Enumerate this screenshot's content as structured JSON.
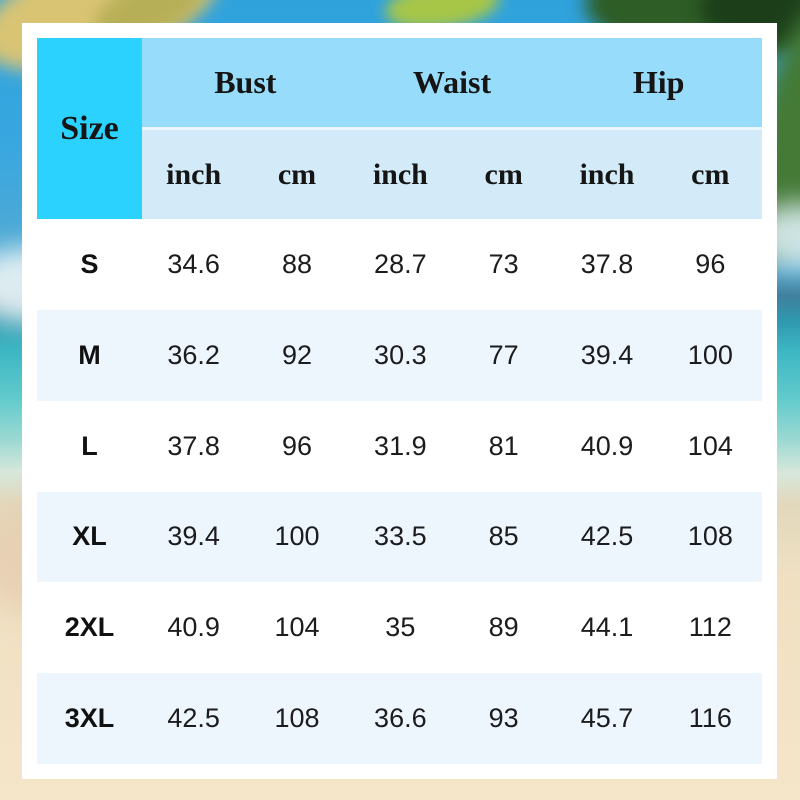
{
  "table": {
    "size_header": "Size",
    "groups": [
      {
        "label": "Bust"
      },
      {
        "label": "Waist"
      },
      {
        "label": "Hip"
      }
    ],
    "unit_headers": [
      "inch",
      "cm",
      "inch",
      "cm",
      "inch",
      "cm"
    ],
    "rows": [
      {
        "size": "S",
        "values": [
          "34.6",
          "88",
          "28.7",
          "73",
          "37.8",
          "96"
        ]
      },
      {
        "size": "M",
        "values": [
          "36.2",
          "92",
          "30.3",
          "77",
          "39.4",
          "100"
        ]
      },
      {
        "size": "L",
        "values": [
          "37.8",
          "96",
          "31.9",
          "81",
          "40.9",
          "104"
        ]
      },
      {
        "size": "XL",
        "values": [
          "39.4",
          "100",
          "33.5",
          "85",
          "42.5",
          "108"
        ]
      },
      {
        "size": "2XL",
        "values": [
          "40.9",
          "104",
          "35",
          "89",
          "44.1",
          "112"
        ]
      },
      {
        "size": "3XL",
        "values": [
          "42.5",
          "108",
          "36.6",
          "93",
          "45.7",
          "116"
        ]
      }
    ]
  },
  "chart_data": {
    "type": "table",
    "column_groups": [
      {
        "label": "Size",
        "colspan": 1
      },
      {
        "label": "Bust",
        "colspan": 2
      },
      {
        "label": "Waist",
        "colspan": 2
      },
      {
        "label": "Hip",
        "colspan": 2
      }
    ],
    "unit_row": [
      "inch",
      "cm",
      "inch",
      "cm",
      "inch",
      "cm"
    ],
    "rows": [
      {
        "size": "S",
        "bust_inch": 34.6,
        "bust_cm": 88,
        "waist_inch": 28.7,
        "waist_cm": 73,
        "hip_inch": 37.8,
        "hip_cm": 96
      },
      {
        "size": "M",
        "bust_inch": 36.2,
        "bust_cm": 92,
        "waist_inch": 30.3,
        "waist_cm": 77,
        "hip_inch": 39.4,
        "hip_cm": 100
      },
      {
        "size": "L",
        "bust_inch": 37.8,
        "bust_cm": 96,
        "waist_inch": 31.9,
        "waist_cm": 81,
        "hip_inch": 40.9,
        "hip_cm": 104
      },
      {
        "size": "XL",
        "bust_inch": 39.4,
        "bust_cm": 100,
        "waist_inch": 33.5,
        "waist_cm": 85,
        "hip_inch": 42.5,
        "hip_cm": 108
      },
      {
        "size": "2XL",
        "bust_inch": 40.9,
        "bust_cm": 104,
        "waist_inch": 35,
        "waist_cm": 89,
        "hip_inch": 44.1,
        "hip_cm": 112
      },
      {
        "size": "3XL",
        "bust_inch": 42.5,
        "bust_cm": 108,
        "waist_inch": 36.6,
        "waist_cm": 93,
        "hip_inch": 45.7,
        "hip_cm": 116
      }
    ]
  },
  "colors": {
    "size_header_bg": "#2cd2fe",
    "group_header_bg": "#97ddfb",
    "unit_header_bg": "#d3ebf9",
    "row_alt_bg": "#edf6fc",
    "row_bg": "#ffffff",
    "card_bg": "#ffffff",
    "text": "#151515",
    "bg_sky": "#2fa2dc",
    "bg_ocean": "#3eb7c4",
    "bg_sand": "#f5e5c9"
  },
  "background": {
    "scene": "blurred tropical beach photo: blue sky with palm fronds at top, turquoise ocean, sandy shore at bottom"
  }
}
